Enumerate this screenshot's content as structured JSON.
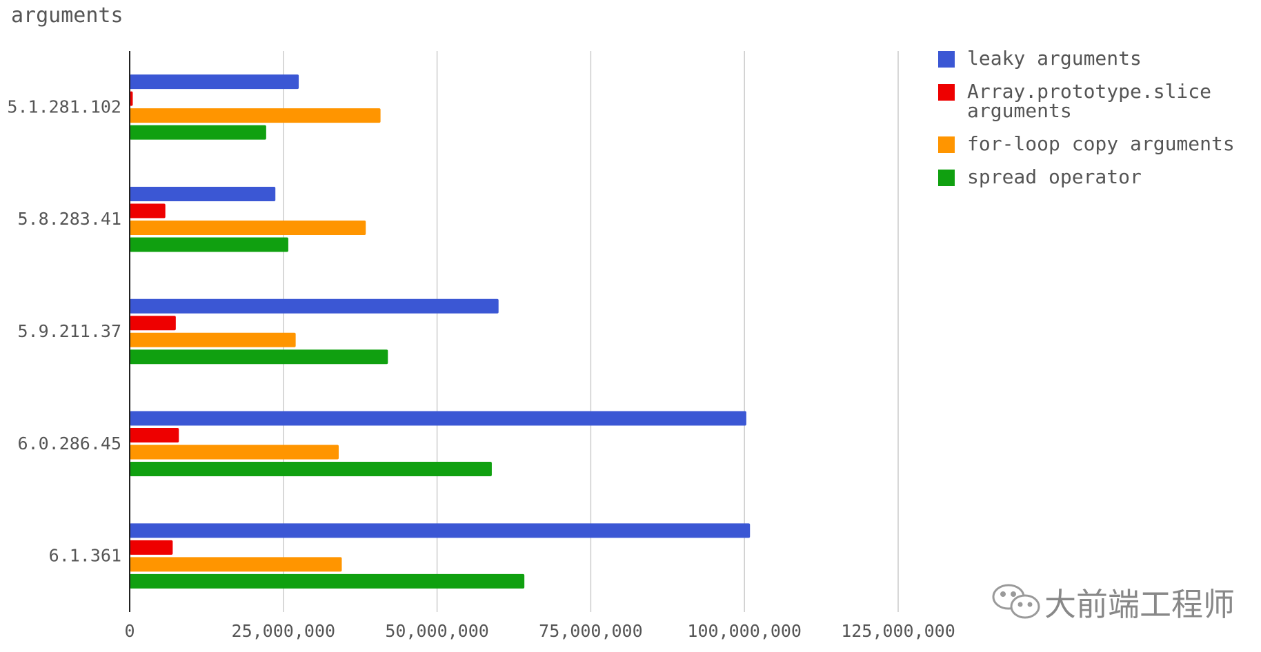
{
  "watermark": "大前端工程师",
  "chart_data": {
    "type": "bar",
    "orientation": "horizontal",
    "title": "arguments",
    "categories": [
      "5.1.281.102",
      "5.8.283.41",
      "5.9.211.37",
      "6.0.286.45",
      "6.1.361"
    ],
    "series": [
      {
        "name": "leaky arguments",
        "color": "#3b57d4",
        "values": [
          27500000,
          23700000,
          60000000,
          100300000,
          100900000
        ]
      },
      {
        "name": "Array.prototype.slice arguments",
        "legend_lines": [
          "Array.prototype.slice",
          "arguments"
        ],
        "color": "#ee0000",
        "values": [
          500000,
          5800000,
          7500000,
          8000000,
          7000000
        ]
      },
      {
        "name": "for-loop copy arguments",
        "color": "#ff9500",
        "values": [
          40800000,
          38400000,
          27000000,
          34000000,
          34500000
        ]
      },
      {
        "name": "spread operator",
        "color": "#10a010",
        "values": [
          22200000,
          25800000,
          42000000,
          58900000,
          64200000
        ]
      }
    ],
    "xlim": [
      0,
      125000000
    ],
    "x_ticks": [
      0,
      25000000,
      50000000,
      75000000,
      100000000,
      125000000
    ],
    "x_tick_labels": [
      "0",
      "25,000,000",
      "50,000,000",
      "75,000,000",
      "100,000,000",
      "125,000,000"
    ],
    "grid": "vertical",
    "legend_position": "right"
  }
}
